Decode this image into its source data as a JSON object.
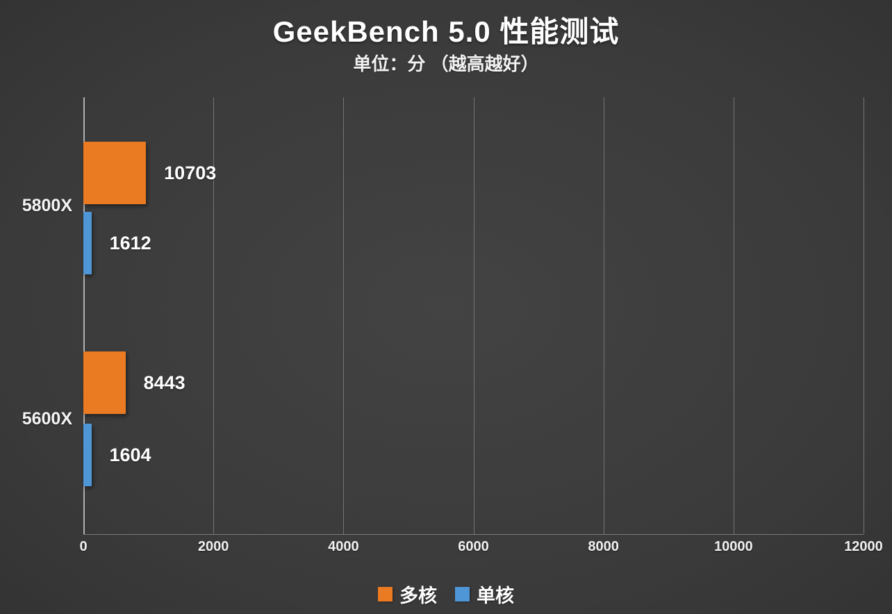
{
  "title": "GeekBench 5.0 性能测试",
  "subtitle": "单位：分 （越高越好）",
  "colors": {
    "background": "#3C3C3C",
    "multi_core": "#EA7B22",
    "single_core": "#4E96D6",
    "gridline": "#757575",
    "text": "#FFFFFF"
  },
  "chart_data": {
    "type": "bar",
    "orientation": "horizontal",
    "title": "GeekBench 5.0 性能测试",
    "subtitle": "单位：分 （越高越好）",
    "categories": [
      "5800X",
      "5600X"
    ],
    "series": [
      {
        "name": "多核",
        "color": "#EA7B22",
        "values": [
          10703,
          8443
        ]
      },
      {
        "name": "单核",
        "color": "#4E96D6",
        "values": [
          1612,
          1604
        ]
      }
    ],
    "xlabel": "",
    "ylabel": "",
    "xlim": [
      0,
      12000
    ],
    "xticks": [
      "0",
      "2000",
      "4000",
      "6000",
      "8000",
      "10000",
      "12000"
    ],
    "grid": "vertical",
    "legend_position": "bottom"
  }
}
